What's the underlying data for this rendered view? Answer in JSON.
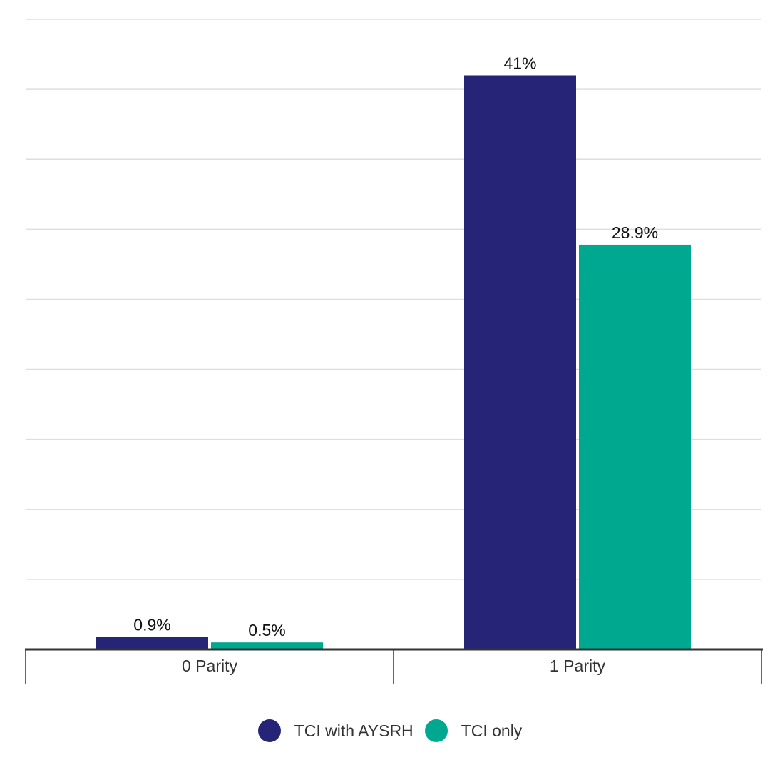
{
  "chart_data": {
    "type": "bar",
    "categories": [
      "0 Parity",
      "1 Parity"
    ],
    "series": [
      {
        "name": "TCI with AYSRH",
        "values": [
          0.9,
          41
        ],
        "labels": [
          "0.9%",
          "41%"
        ],
        "color": "#262477"
      },
      {
        "name": "TCI only",
        "values": [
          0.5,
          28.9
        ],
        "labels": [
          "0.5%",
          "28.9%"
        ],
        "color": "#00a88f"
      }
    ],
    "ylim": [
      0,
      45
    ],
    "grid": true,
    "legend_position": "bottom-center",
    "title": "",
    "xlabel": "",
    "ylabel": ""
  }
}
